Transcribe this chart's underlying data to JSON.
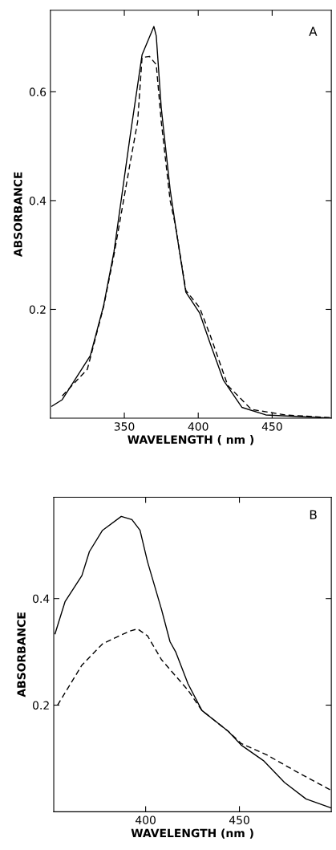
{
  "chart_data": [
    {
      "type": "line",
      "xlabel": "WAVELENGTH ( nm )",
      "ylabel": "ABSORBANCE",
      "annotations": [
        "A"
      ],
      "xlim": [
        300,
        490
      ],
      "ylim": [
        0,
        0.75
      ],
      "xticks": [
        350,
        400,
        450
      ],
      "yticks": [
        0.2,
        0.4,
        0.6
      ],
      "grid": false,
      "marker": "none",
      "series": [
        {
          "color": "#000000",
          "line_style": "solid",
          "x": [
            301,
            308,
            327,
            336,
            343,
            354,
            362,
            370,
            371.6,
            375,
            381,
            384.6,
            391.6,
            401,
            408,
            417,
            429.5,
            445.7,
            490
          ],
          "values": [
            0.022,
            0.034,
            0.115,
            0.207,
            0.306,
            0.52,
            0.668,
            0.72,
            0.703,
            0.57,
            0.42,
            0.354,
            0.232,
            0.193,
            0.138,
            0.07,
            0.02,
            0.006,
            0.0
          ]
        },
        {
          "color": "#000000",
          "line_style": "dashed",
          "x": [
            308,
            325,
            336,
            343,
            354,
            359,
            362,
            367,
            371.6,
            375,
            381,
            384.6,
            391.6,
            401,
            408,
            420,
            436,
            459,
            490
          ],
          "values": [
            0.041,
            0.09,
            0.205,
            0.3,
            0.47,
            0.545,
            0.663,
            0.665,
            0.65,
            0.545,
            0.4,
            0.354,
            0.235,
            0.203,
            0.153,
            0.06,
            0.016,
            0.006,
            0.001
          ]
        }
      ]
    },
    {
      "type": "line",
      "xlabel": "WAVELENGTH (nm )",
      "ylabel": "ABSORBANCE",
      "annotations": [
        "B"
      ],
      "xlim": [
        351,
        499
      ],
      "ylim": [
        0,
        0.59
      ],
      "xticks": [
        400,
        450
      ],
      "yticks": [
        0.2,
        0.4
      ],
      "grid": false,
      "marker": "none",
      "series": [
        {
          "color": "#000000",
          "line_style": "solid",
          "x": [
            351.7,
            357,
            366,
            370,
            377,
            387,
            392.7,
            397,
            401,
            408.5,
            413,
            416,
            422.6,
            430,
            444,
            451,
            462.8,
            474,
            485.5,
            499
          ],
          "values": [
            0.334,
            0.394,
            0.443,
            0.488,
            0.528,
            0.554,
            0.548,
            0.528,
            0.469,
            0.379,
            0.319,
            0.3,
            0.24,
            0.19,
            0.151,
            0.125,
            0.096,
            0.055,
            0.024,
            0.007
          ]
        },
        {
          "color": "#000000",
          "line_style": "dashed",
          "x": [
            353,
            366,
            377,
            391.5,
            395.7,
            401,
            408.5,
            422.6,
            430,
            444,
            451,
            465,
            480,
            499
          ],
          "values": [
            0.2,
            0.275,
            0.315,
            0.339,
            0.343,
            0.33,
            0.285,
            0.228,
            0.19,
            0.151,
            0.128,
            0.106,
            0.076,
            0.04
          ]
        }
      ]
    }
  ]
}
